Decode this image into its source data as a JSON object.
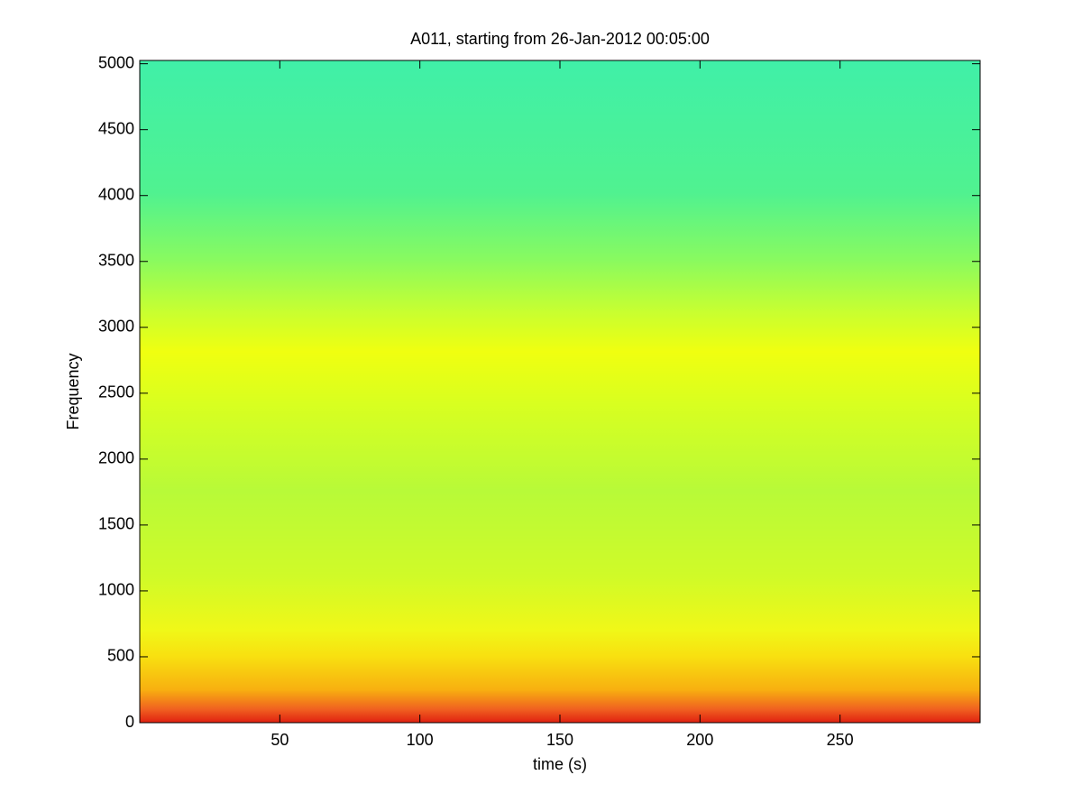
{
  "chart_data": {
    "type": "spectrogram",
    "title": "A011, starting from 26-Jan-2012 00:05:00",
    "x_label": "time (s)",
    "y_label": "Frequency",
    "xlim": [
      0,
      300
    ],
    "xticks": [
      50,
      100,
      150,
      200,
      250
    ],
    "ylim": [
      0,
      5025
    ],
    "yticks": [
      0,
      500,
      1000,
      1500,
      2000,
      2500,
      3000,
      3500,
      4000,
      4500,
      5000
    ],
    "grid": false
  }
}
